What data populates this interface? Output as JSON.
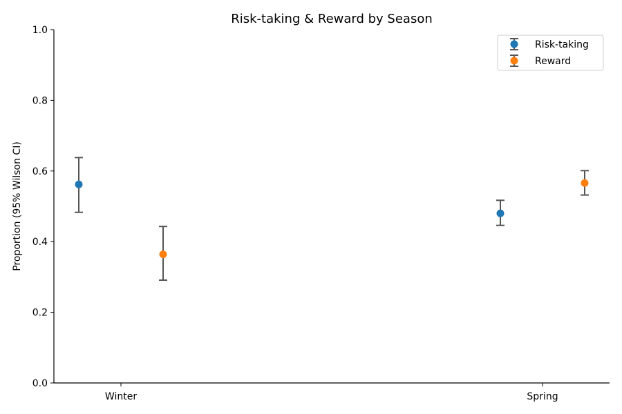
{
  "chart_data": {
    "type": "scatter",
    "title": "Risk-taking & Reward by Season",
    "xlabel": "",
    "ylabel": "Proportion (95% Wilson CI)",
    "categories": [
      "Winter",
      "Spring"
    ],
    "ylim": [
      0,
      1
    ],
    "yticks": [
      "0.0",
      "0.2",
      "0.4",
      "0.6",
      "0.8",
      "1.0"
    ],
    "grid": false,
    "legend_position": "top-right",
    "series": [
      {
        "name": "Risk-taking",
        "color": "#1f77b4",
        "values": [
          0.562,
          0.48
        ],
        "ci_low": [
          0.483,
          0.446
        ],
        "ci_high": [
          0.638,
          0.517
        ]
      },
      {
        "name": "Reward",
        "color": "#ff7f0e",
        "values": [
          0.364,
          0.566
        ],
        "ci_low": [
          0.291,
          0.532
        ],
        "ci_high": [
          0.443,
          0.601
        ]
      }
    ],
    "errorbar_color": "#555555"
  }
}
